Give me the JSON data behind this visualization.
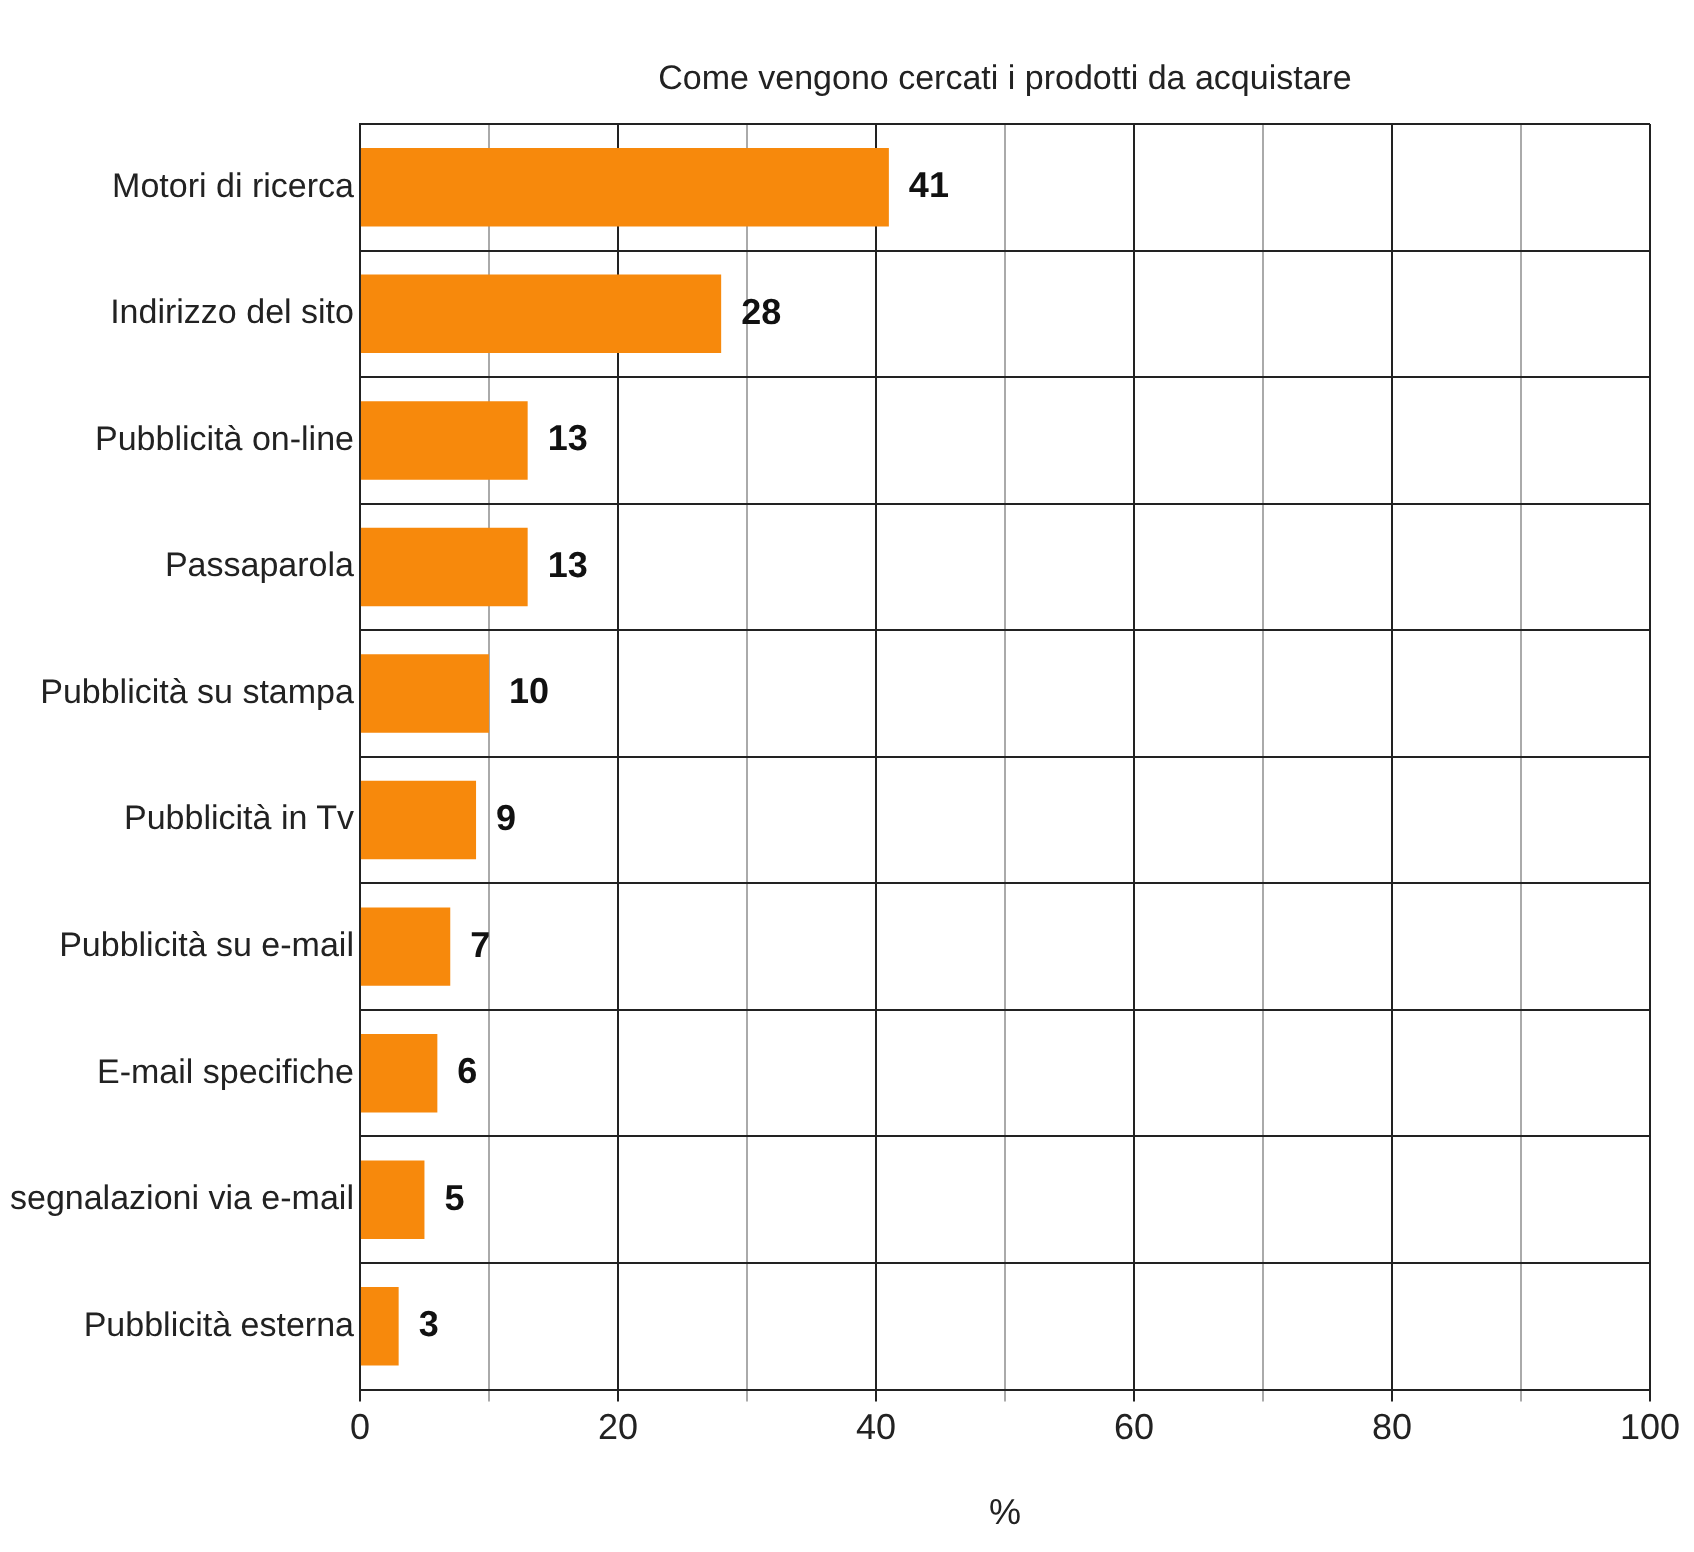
{
  "chart_data": {
    "type": "bar",
    "orientation": "horizontal",
    "title": "Come vengono cercati i prodotti da acquistare",
    "xlabel": "%",
    "categories": [
      "Motori di ricerca",
      "Indirizzo del sito",
      "Pubblicità on-line",
      "Passaparola",
      "Pubblicità su stampa",
      "Pubblicità in Tv",
      "Pubblicità su e-mail",
      "E-mail specifiche",
      "segnalazioni via e-mail",
      "Pubblicità esterna"
    ],
    "values": [
      41,
      28,
      13,
      13,
      10,
      9,
      7,
      6,
      5,
      3
    ],
    "color": "#f7890c",
    "xlim": [
      0,
      100
    ],
    "xticks": [
      0,
      {
        "value": 10,
        "label": null
      },
      20,
      {
        "value": 30,
        "label": null
      },
      40,
      {
        "value": 50,
        "label": null
      },
      60,
      {
        "value": 70,
        "label": null
      },
      80,
      {
        "value": 90,
        "label": null
      },
      100
    ],
    "grid": true,
    "legend": false,
    "data_labels": true
  }
}
